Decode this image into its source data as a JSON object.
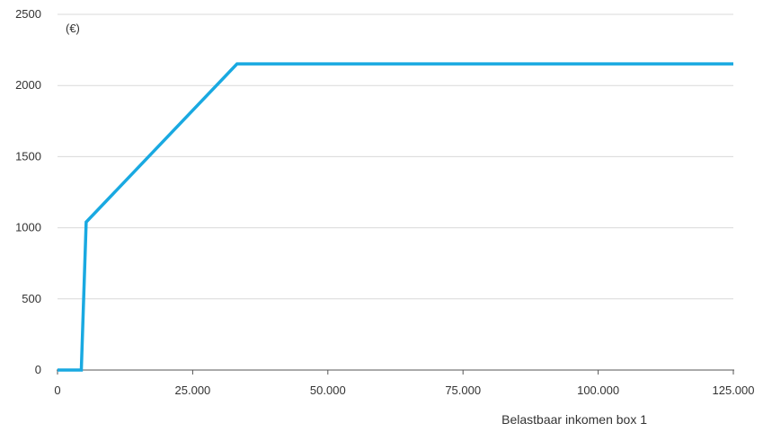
{
  "chart_data": {
    "type": "line",
    "unit_label": "(€)",
    "xlabel": "Belastbaar inkomen box 1",
    "ylabel": "",
    "xlim": [
      0,
      125000
    ],
    "ylim": [
      0,
      2500
    ],
    "x_ticks": [
      {
        "value": 0,
        "label": "0"
      },
      {
        "value": 25000,
        "label": "25.000"
      },
      {
        "value": 50000,
        "label": "50.000"
      },
      {
        "value": 75000,
        "label": "75.000"
      },
      {
        "value": 100000,
        "label": "100.000"
      },
      {
        "value": 125000,
        "label": "125.000"
      }
    ],
    "y_ticks": [
      {
        "value": 0,
        "label": "0"
      },
      {
        "value": 500,
        "label": "500"
      },
      {
        "value": 1000,
        "label": "1000"
      },
      {
        "value": 1500,
        "label": "1500"
      },
      {
        "value": 2000,
        "label": "2000"
      },
      {
        "value": 2500,
        "label": "2500"
      }
    ],
    "grid": "horizontal",
    "series": [
      {
        "color": "#19a9e1",
        "points": [
          {
            "x": 0,
            "y": 0
          },
          {
            "x": 4400,
            "y": 0
          },
          {
            "x": 5300,
            "y": 1040
          },
          {
            "x": 33200,
            "y": 2152
          },
          {
            "x": 125000,
            "y": 2152
          }
        ]
      }
    ]
  }
}
